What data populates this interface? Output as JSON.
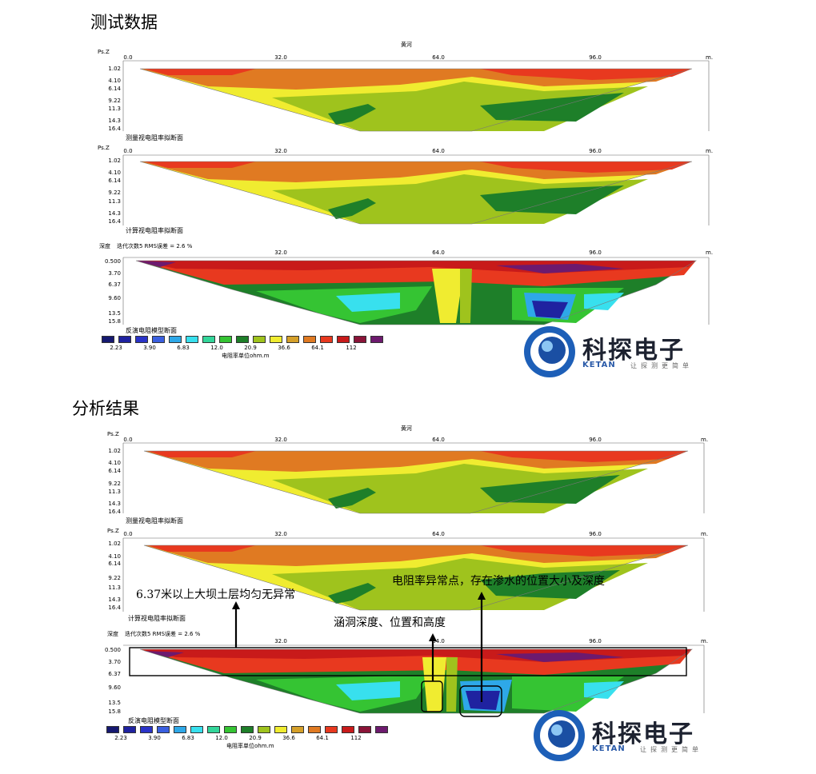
{
  "sections": [
    {
      "title": "测试数据"
    },
    {
      "title": "分析结果"
    }
  ],
  "profile": {
    "top_title": "黄河",
    "top_title_partial": "黄河",
    "x_ticks": [
      "0.0",
      "32.0",
      "64.0",
      "96.0"
    ],
    "x_unit": "m.",
    "apparent_depths": [
      "1.02",
      "4.10",
      "6.14",
      "9.22",
      "11.3",
      "14.3",
      "16.4"
    ],
    "apparent_axis_label": "Ps.Z",
    "model_axis_label": "深度",
    "model_depths": [
      "0.500",
      "3.70",
      "6.37",
      "9.60",
      "13.5",
      "15.8"
    ],
    "iteration_text": "迭代次数5 RMS误差 = 2.6 %",
    "caption_measured": "测量视电阻率拟断面",
    "caption_calculated": "计算视电阻率拟断面",
    "caption_inversion": "反演电阻模型断面"
  },
  "legend": {
    "colors": [
      "#161970",
      "#1f22a0",
      "#2a33c8",
      "#3a5fe0",
      "#2ea8e8",
      "#38e0ee",
      "#33d69a",
      "#35c433",
      "#1e7f29",
      "#9fc31d",
      "#f0ec30",
      "#d5a02a",
      "#e07a22",
      "#e8391f",
      "#c81a1a",
      "#8a1438",
      "#6d1a6e"
    ],
    "labels": [
      "2.23",
      "3.90",
      "6.83",
      "12.0",
      "20.9",
      "36.6",
      "64.1",
      "112"
    ],
    "unit": "电阻率单位ohm.m"
  },
  "logo": {
    "brand": "科探电子",
    "sub": "KETAN",
    "slogan": "让探测更简单"
  },
  "annotations": {
    "layer": "6.37米以上大坝土层均匀无异常",
    "anomaly": "电阻率异常点，存在渗水的位置大小及深度",
    "culvert": "涵洞深度、位置和高度"
  }
}
